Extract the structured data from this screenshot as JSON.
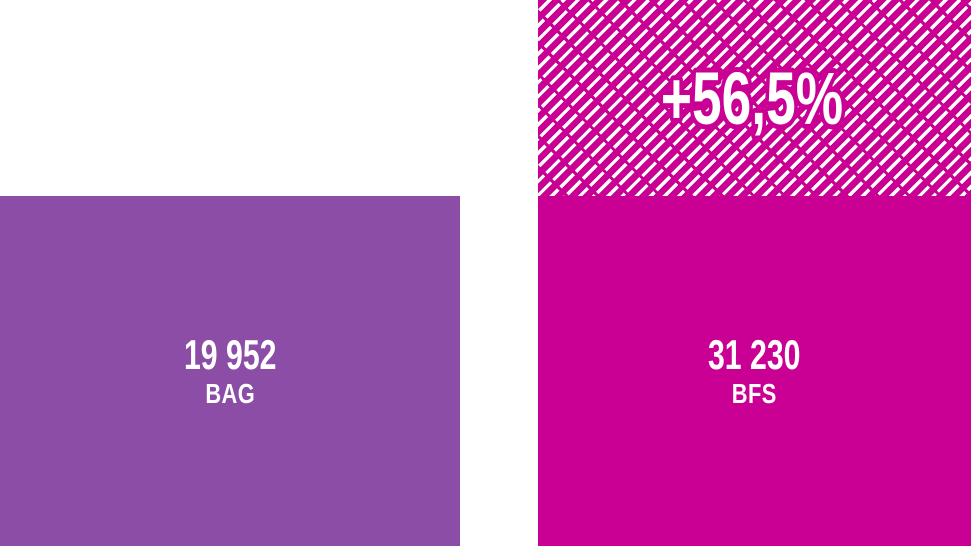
{
  "chart_data": {
    "type": "bar",
    "title": "",
    "xlabel": "",
    "ylabel": "",
    "categories": [
      "BAG",
      "BFS"
    ],
    "values": [
      19952,
      31230
    ],
    "bars": [
      {
        "category": "BAG",
        "value": 19952,
        "value_label": "19 952",
        "color": "#8b4da6",
        "hatched_extension": false
      },
      {
        "category": "BFS",
        "value": 31230,
        "value_label": "31 230",
        "color": "#ca0094",
        "hatched_extension": true,
        "delta_label": "+56,5%"
      }
    ],
    "colors": {
      "bag": "#8b4da6",
      "bfs": "#ca0094",
      "text": "#ffffff",
      "background": "#ffffff"
    },
    "layout": {
      "legend": "none",
      "grid": false,
      "axes_visible": false,
      "bar_baseline": "bottom",
      "hatch_style": "white diagonal dashed stripes over bfs color"
    }
  }
}
